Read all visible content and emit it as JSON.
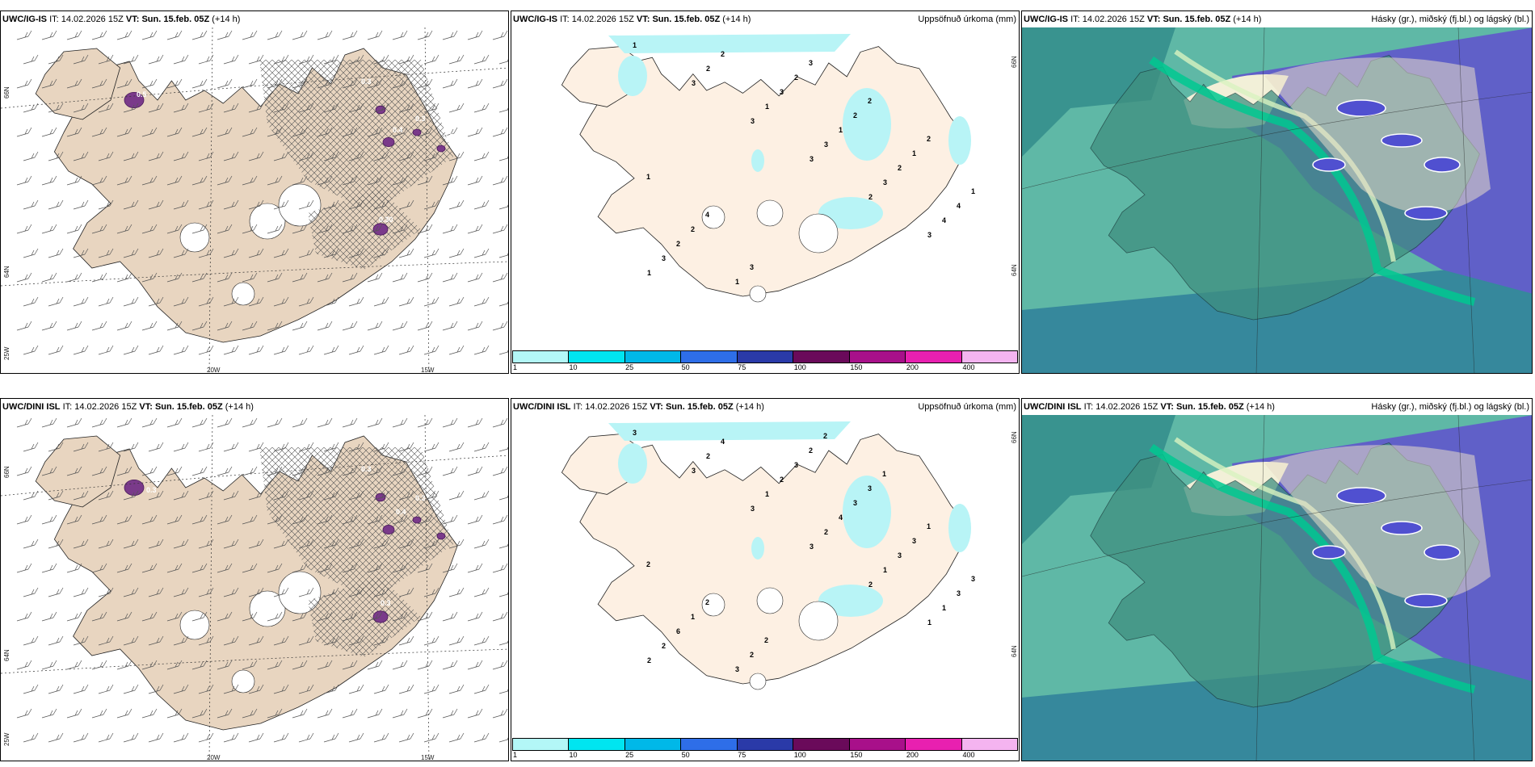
{
  "rows": [
    {
      "wind_panel": {
        "model": "UWC/IG-IS",
        "it_label": "IT:",
        "it_value": "14.02.2026 15Z",
        "vt_label": "VT:",
        "vt_value": "Sun. 15.feb. 05Z",
        "lead": "(+14 h)",
        "lat_labels": [
          "66N",
          "64N",
          "25W"
        ],
        "lon_labels": [
          "20W",
          "15W"
        ],
        "precip_labels": [
          "0.5",
          "0.3",
          "0.4",
          "0.3",
          "0.3",
          "0.30"
        ]
      },
      "precip_panel": {
        "model": "UWC/IG-IS",
        "it_label": "IT:",
        "it_value": "14.02.2026 15Z",
        "vt_label": "VT:",
        "vt_value": "Sun. 15.feb. 05Z",
        "lead": "(+14 h)",
        "title": "Uppsöfnuð úrkoma (mm)",
        "lat_labels": [
          "66N",
          "64N"
        ],
        "values": [
          "1",
          "3",
          "3",
          "3",
          "2",
          "3",
          "1",
          "2",
          "1",
          "3",
          "3",
          "4",
          "3",
          "2",
          "3",
          "1",
          "2",
          "4",
          "2",
          "1",
          "2",
          "2",
          "1",
          "1",
          "2",
          "3",
          "3",
          "2",
          "2",
          "1",
          "4"
        ]
      },
      "cloud_panel": {
        "model": "UWC/IG-IS",
        "it_label": "IT:",
        "it_value": "14.02.2026 15Z",
        "vt_label": "VT:",
        "vt_value": "Sun. 15.feb. 05Z",
        "lead": "(+14 h)",
        "title": "Hásky (gr.), miðský (fj.bl.) og lágský (bl.)"
      }
    },
    {
      "wind_panel": {
        "model": "UWC/DINI ISL",
        "it_label": "IT:",
        "it_value": "14.02.2026 15Z",
        "vt_label": "VT:",
        "vt_value": "Sun. 15.feb. 05Z",
        "lead": "(+14 h)",
        "lat_labels": [
          "66N",
          "64N",
          "25W"
        ],
        "lon_labels": [
          "20W",
          "15W"
        ],
        "precip_labels": [
          "0.3",
          "0.3",
          "0.4",
          "0.3",
          "0.3"
        ]
      },
      "precip_panel": {
        "model": "UWC/DINI ISL",
        "it_label": "IT:",
        "it_value": "14.02.2026 15Z",
        "vt_label": "VT:",
        "vt_value": "Sun. 15.feb. 05Z",
        "lead": "(+14 h)",
        "title": "Uppsöfnuð úrkoma (mm)",
        "lat_labels": [
          "66N",
          "64N"
        ],
        "values": [
          "3",
          "3",
          "3",
          "3",
          "2",
          "1",
          "2",
          "2",
          "1",
          "2",
          "1",
          "1",
          "2",
          "4",
          "2",
          "4",
          "3",
          "3",
          "6",
          "3",
          "3",
          "3",
          "3",
          "3",
          "1",
          "2",
          "2",
          "3",
          "1",
          "2",
          "2",
          "2",
          "2",
          "1"
        ]
      },
      "cloud_panel": {
        "model": "UWC/DINI ISL",
        "it_label": "IT:",
        "it_value": "14.02.2026 15Z",
        "vt_label": "VT:",
        "vt_value": "Sun. 15.feb. 05Z",
        "lead": "(+14 h)",
        "title": "Hásky (gr.), miðský (fj.bl.) og lágský (bl.)"
      }
    }
  ],
  "colorbar": {
    "ticks": [
      "1",
      "10",
      "25",
      "50",
      "75",
      "100",
      "150",
      "200",
      "400"
    ],
    "colors": [
      "#b3f7f7",
      "#00e5f0",
      "#00b8e8",
      "#2e6ee8",
      "#2a3aa8",
      "#6a0a5a",
      "#a8108a",
      "#e820b0",
      "#f4b4f0"
    ]
  },
  "colors": {
    "land_wind": "#e8d5c0",
    "land_precip": "#fdf0e3",
    "precip_light": "#b8f4f6",
    "cloud_low": "#5fb8a6",
    "cloud_high": "#6060c8",
    "cloud_green": "#00c890",
    "cloud_land": "#e8dcc8"
  }
}
